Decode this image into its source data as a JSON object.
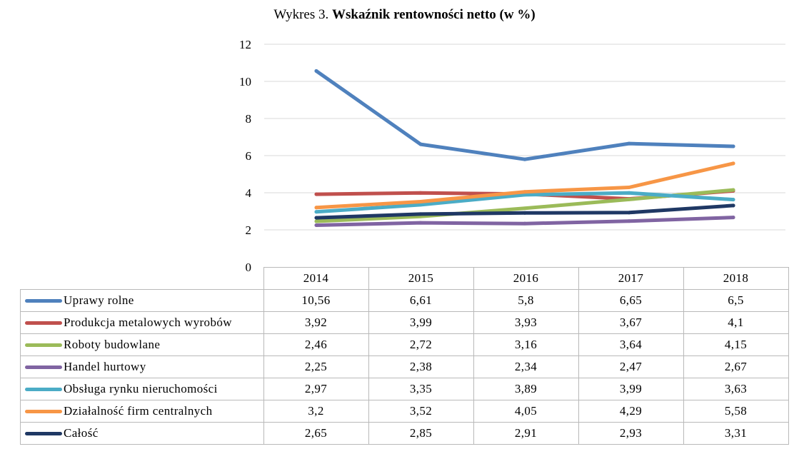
{
  "title": {
    "prefix": "Wykres 3.",
    "main": "Wskaźnik rentowności netto (w %)"
  },
  "chart_data": {
    "type": "line",
    "title": "Wykres 3. Wskaźnik rentowności netto (w %)",
    "categories": [
      "2014",
      "2015",
      "2016",
      "2017",
      "2018"
    ],
    "ylim": [
      0,
      12
    ],
    "yticks": [
      "0",
      "2",
      "4",
      "6",
      "8",
      "10",
      "12"
    ],
    "grid": true,
    "legend": "data-table",
    "series": [
      {
        "name": "Uprawy rolne",
        "color": "#4f81bd",
        "values": [
          10.56,
          6.61,
          5.8,
          6.65,
          6.5
        ],
        "labels": [
          "10,56",
          "6,61",
          "5,8",
          "6,65",
          "6,5"
        ]
      },
      {
        "name": "Produkcja metalowych wyrobów",
        "color": "#c0504d",
        "values": [
          3.92,
          3.99,
          3.93,
          3.67,
          4.1
        ],
        "labels": [
          "3,92",
          "3,99",
          "3,93",
          "3,67",
          "4,1"
        ]
      },
      {
        "name": "Roboty budowlane",
        "color": "#9bbb59",
        "values": [
          2.46,
          2.72,
          3.16,
          3.64,
          4.15
        ],
        "labels": [
          "2,46",
          "2,72",
          "3,16",
          "3,64",
          "4,15"
        ]
      },
      {
        "name": "Handel hurtowy",
        "color": "#8064a2",
        "values": [
          2.25,
          2.38,
          2.34,
          2.47,
          2.67
        ],
        "labels": [
          "2,25",
          "2,38",
          "2,34",
          "2,47",
          "2,67"
        ]
      },
      {
        "name": "Obsługa rynku nieruchomości",
        "color": "#4bacc6",
        "values": [
          2.97,
          3.35,
          3.89,
          3.99,
          3.63
        ],
        "labels": [
          "2,97",
          "3,35",
          "3,89",
          "3,99",
          "3,63"
        ]
      },
      {
        "name": "Działalność firm centralnych",
        "color": "#f79646",
        "values": [
          3.2,
          3.52,
          4.05,
          4.29,
          5.58
        ],
        "labels": [
          "3,2",
          "3,52",
          "4,05",
          "4,29",
          "5,58"
        ]
      },
      {
        "name": "Całość",
        "color": "#1f3864",
        "values": [
          2.65,
          2.85,
          2.91,
          2.93,
          3.31
        ],
        "labels": [
          "2,65",
          "2,85",
          "2,91",
          "2,93",
          "3,31"
        ]
      }
    ]
  }
}
